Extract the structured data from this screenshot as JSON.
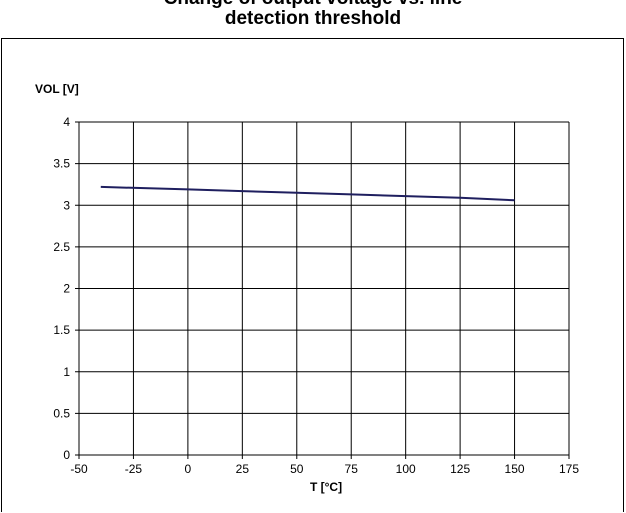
{
  "title": {
    "line1": "Change of output voltage vs. line",
    "line2": "detection threshold"
  },
  "chart_data": {
    "type": "line",
    "title": "",
    "xlabel": "T [°C]",
    "ylabel": "VOL [V]",
    "xlim": [
      -50,
      175
    ],
    "ylim": [
      0,
      4
    ],
    "xticks": [
      -50,
      -25,
      0,
      25,
      50,
      75,
      100,
      125,
      150,
      175
    ],
    "yticks": [
      0,
      0.5,
      1,
      1.5,
      2,
      2.5,
      3,
      3.5,
      4
    ],
    "grid": true,
    "legend": "none",
    "series": [
      {
        "x": [
          -40,
          0,
          25,
          50,
          75,
          100,
          125,
          150
        ],
        "y": [
          3.22,
          3.19,
          3.17,
          3.15,
          3.13,
          3.11,
          3.09,
          3.06
        ],
        "color": "#1f1f5f"
      }
    ]
  }
}
